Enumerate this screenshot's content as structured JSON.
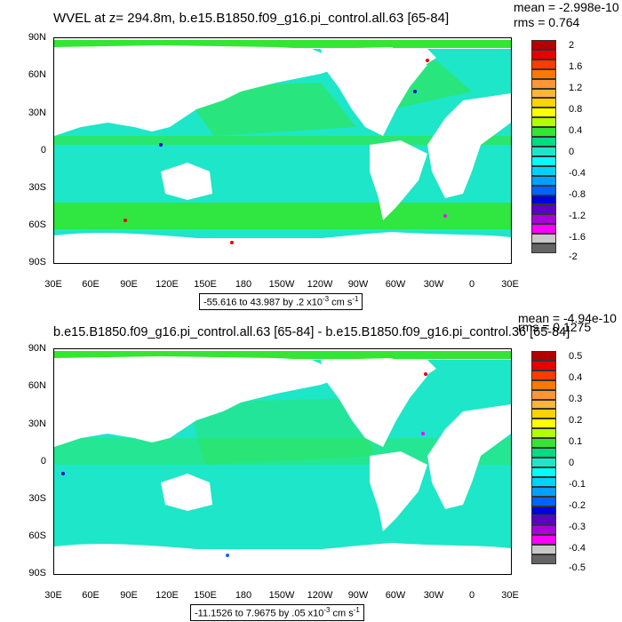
{
  "panels": [
    {
      "title": "WVEL at z= 294.8m, b.e15.B1850.f09_g16.pi_control.all.63 [65-84]",
      "mean": "mean = -2.998e-10",
      "rms": "rms = 0.764",
      "y_ticks": [
        "90N",
        "60N",
        "30N",
        "0",
        "30S",
        "60S",
        "90S"
      ],
      "x_ticks": [
        "30E",
        "60E",
        "90E",
        "120E",
        "150E",
        "180",
        "150W",
        "120W",
        "90W",
        "60W",
        "30W",
        "0",
        "30E"
      ],
      "range_label": "-55.616 to 43.987 by .2 x10",
      "range_exp": "-3",
      "range_units": " cm s",
      "range_units_exp": "-1",
      "colorbar_labels": [
        "2",
        "1.6",
        "1.2",
        "0.8",
        "0.4",
        "0",
        "-0.4",
        "-0.8",
        "-1.2",
        "-1.6",
        "-2"
      ]
    },
    {
      "title": "b.e15.B1850.f09_g16.pi_control.all.63 [65-84] - b.e15.B1850.f09_g16.pi_control.36 [65-84]",
      "mean": "mean = -4.94e-10",
      "rms": "rms = 0.1275",
      "y_ticks": [
        "90N",
        "60N",
        "30N",
        "0",
        "30S",
        "60S",
        "90S"
      ],
      "x_ticks": [
        "30E",
        "60E",
        "90E",
        "120E",
        "150E",
        "180",
        "150W",
        "120W",
        "90W",
        "60W",
        "30W",
        "0",
        "30E"
      ],
      "range_label": "-11.1526 to 7.9675 by .05 x10",
      "range_exp": "-3",
      "range_units": " cm s",
      "range_units_exp": "-1",
      "colorbar_labels": [
        "0.5",
        "0.4",
        "0.3",
        "0.2",
        "0.1",
        "0",
        "-0.1",
        "-0.2",
        "-0.3",
        "-0.4",
        "-0.5"
      ]
    }
  ],
  "colorbar_colors": [
    "#b40000",
    "#e60000",
    "#ff3c00",
    "#ff7800",
    "#ff9632",
    "#ffb43c",
    "#ffd200",
    "#ffff00",
    "#b4ff00",
    "#32e632",
    "#00dc82",
    "#1ee6c8",
    "#00ffff",
    "#00d2ff",
    "#00a0ff",
    "#0064ff",
    "#0000dc",
    "#5a00c8",
    "#aa00dc",
    "#ff00ff",
    "#c8c8c8",
    "#646464"
  ]
}
